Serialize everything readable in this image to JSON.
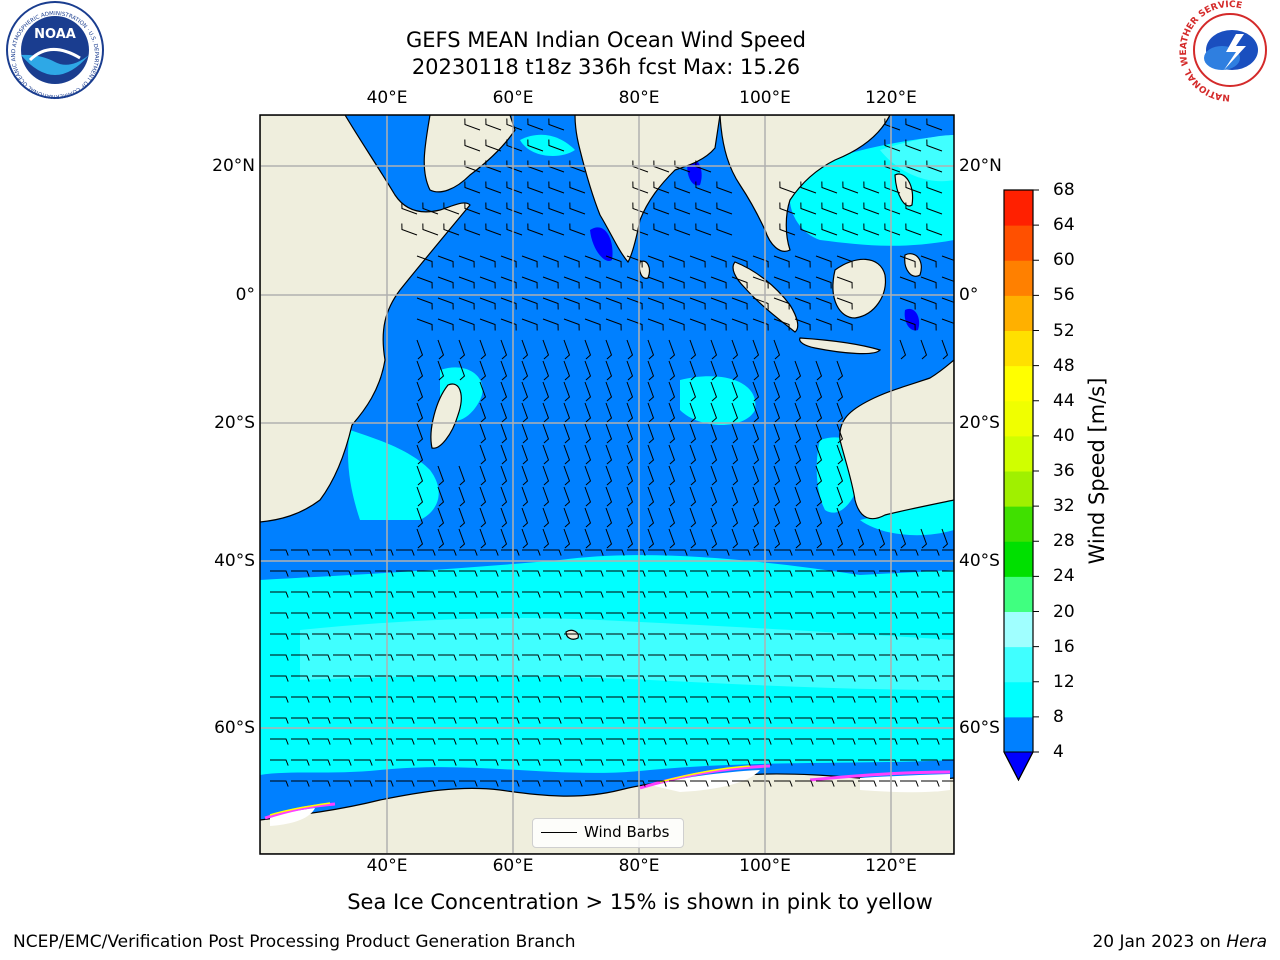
{
  "title": {
    "line1": "GEFS MEAN Indian Ocean Wind Speed",
    "line2": "20230118 t18z 336h fcst   Max: 15.26"
  },
  "axes": {
    "lon_labels": [
      "40°E",
      "60°E",
      "80°E",
      "100°E",
      "120°E"
    ],
    "lat_labels": [
      "20°N",
      "0°",
      "20°S",
      "40°S",
      "60°S"
    ]
  },
  "colorbar": {
    "label": "Wind Speed [m/s]",
    "ticks": [
      "4",
      "8",
      "12",
      "16",
      "20",
      "24",
      "28",
      "32",
      "36",
      "40",
      "44",
      "48",
      "52",
      "56",
      "60",
      "64",
      "68"
    ],
    "colors": [
      "#0080ff",
      "#00ffff",
      "#40ffff",
      "#a0ffff",
      "#40ff80",
      "#00e000",
      "#40e000",
      "#a0f000",
      "#d0ff00",
      "#f0ff00",
      "#ffff00",
      "#ffe000",
      "#ffb000",
      "#ff8000",
      "#ff5000",
      "#ff2000"
    ],
    "under_color": "#0000ff"
  },
  "legend": {
    "label": "Wind Barbs"
  },
  "caption": "Sea Ice Concentration > 15% is shown in pink to yellow",
  "footer": {
    "left": "NCEP/EMC/Verification Post Processing Product Generation Branch",
    "right_date": "20 Jan 2023 on",
    "right_machine": "Hera"
  },
  "logos": {
    "noaa": {
      "text": "NOAA",
      "ring": "NATIONAL OCEANIC AND ATMOSPHERIC ADMINISTRATION · U.S. DEPARTMENT OF COMMERCE"
    },
    "nws": {
      "ring": "NATIONAL WEATHER SERVICE"
    }
  },
  "map": {
    "land_color": "#efeedd",
    "ocean_low": "#0080ff",
    "ocean_mid": "#00ffff",
    "ocean_high": "#40ffff",
    "ice_color": "#ff40ff"
  }
}
